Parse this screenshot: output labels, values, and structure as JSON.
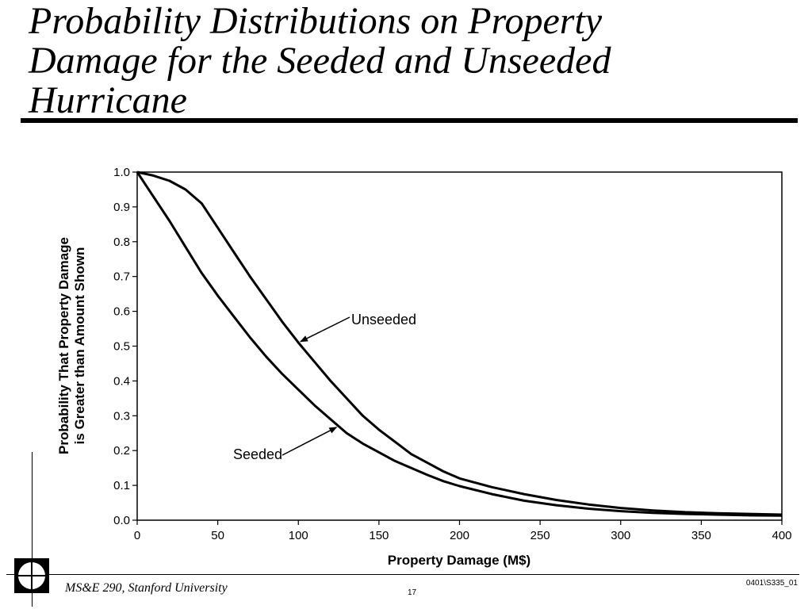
{
  "slide": {
    "title": "Probability Distributions on Property\nDamage for the Seeded and Unseeded\nHurricane",
    "footer_course": "MS&E 290, Stanford University",
    "page_number": "17",
    "slide_code": "0401\\S335_01"
  },
  "chart_data": {
    "type": "line",
    "title": "",
    "xlabel": "Property Damage (M$)",
    "ylabel": "Probability That Property Damage\nis Greater than Amount Shown",
    "xlim": [
      0,
      400
    ],
    "ylim": [
      0,
      1.0
    ],
    "xticks": [
      0,
      50,
      100,
      150,
      200,
      250,
      300,
      350,
      400
    ],
    "xtick_labels": [
      "0",
      "50",
      "100",
      "150",
      "200",
      "250",
      "300",
      "350",
      "400"
    ],
    "yticks": [
      0,
      0.1,
      0.2,
      0.3,
      0.4,
      0.5,
      0.6,
      0.7,
      0.8,
      0.9,
      1.0
    ],
    "ytick_labels": [
      "0.0",
      "0.1",
      "0.2",
      "0.3",
      "0.4",
      "0.5",
      "0.6",
      "0.7",
      "0.8",
      "0.9",
      "1.0"
    ],
    "grid": false,
    "legend": "none",
    "series": [
      {
        "name": "Unseeded",
        "x": [
          0,
          10,
          20,
          30,
          40,
          50,
          60,
          70,
          80,
          90,
          100,
          110,
          120,
          130,
          140,
          150,
          160,
          170,
          180,
          190,
          200,
          220,
          240,
          260,
          280,
          300,
          320,
          340,
          360,
          380,
          400
        ],
        "y": [
          1.0,
          0.99,
          0.975,
          0.95,
          0.91,
          0.84,
          0.77,
          0.7,
          0.635,
          0.57,
          0.51,
          0.455,
          0.4,
          0.35,
          0.3,
          0.26,
          0.225,
          0.19,
          0.165,
          0.14,
          0.12,
          0.095,
          0.075,
          0.058,
          0.045,
          0.035,
          0.028,
          0.023,
          0.02,
          0.018,
          0.016
        ]
      },
      {
        "name": "Seeded",
        "x": [
          0,
          10,
          20,
          30,
          40,
          50,
          60,
          70,
          80,
          90,
          100,
          110,
          120,
          130,
          140,
          150,
          160,
          170,
          180,
          190,
          200,
          220,
          240,
          260,
          280,
          300,
          320,
          340,
          360,
          380,
          400
        ],
        "y": [
          1.0,
          0.93,
          0.86,
          0.785,
          0.71,
          0.645,
          0.585,
          0.525,
          0.47,
          0.42,
          0.375,
          0.33,
          0.29,
          0.25,
          0.22,
          0.195,
          0.17,
          0.15,
          0.13,
          0.112,
          0.098,
          0.075,
          0.056,
          0.043,
          0.033,
          0.026,
          0.021,
          0.018,
          0.016,
          0.014,
          0.013
        ]
      }
    ],
    "annotations": [
      {
        "text": "Unseeded",
        "series": "Unseeded",
        "x": 100,
        "y": 0.51
      },
      {
        "text": "Seeded",
        "series": "Seeded",
        "x": 125,
        "y": 0.27
      }
    ]
  }
}
